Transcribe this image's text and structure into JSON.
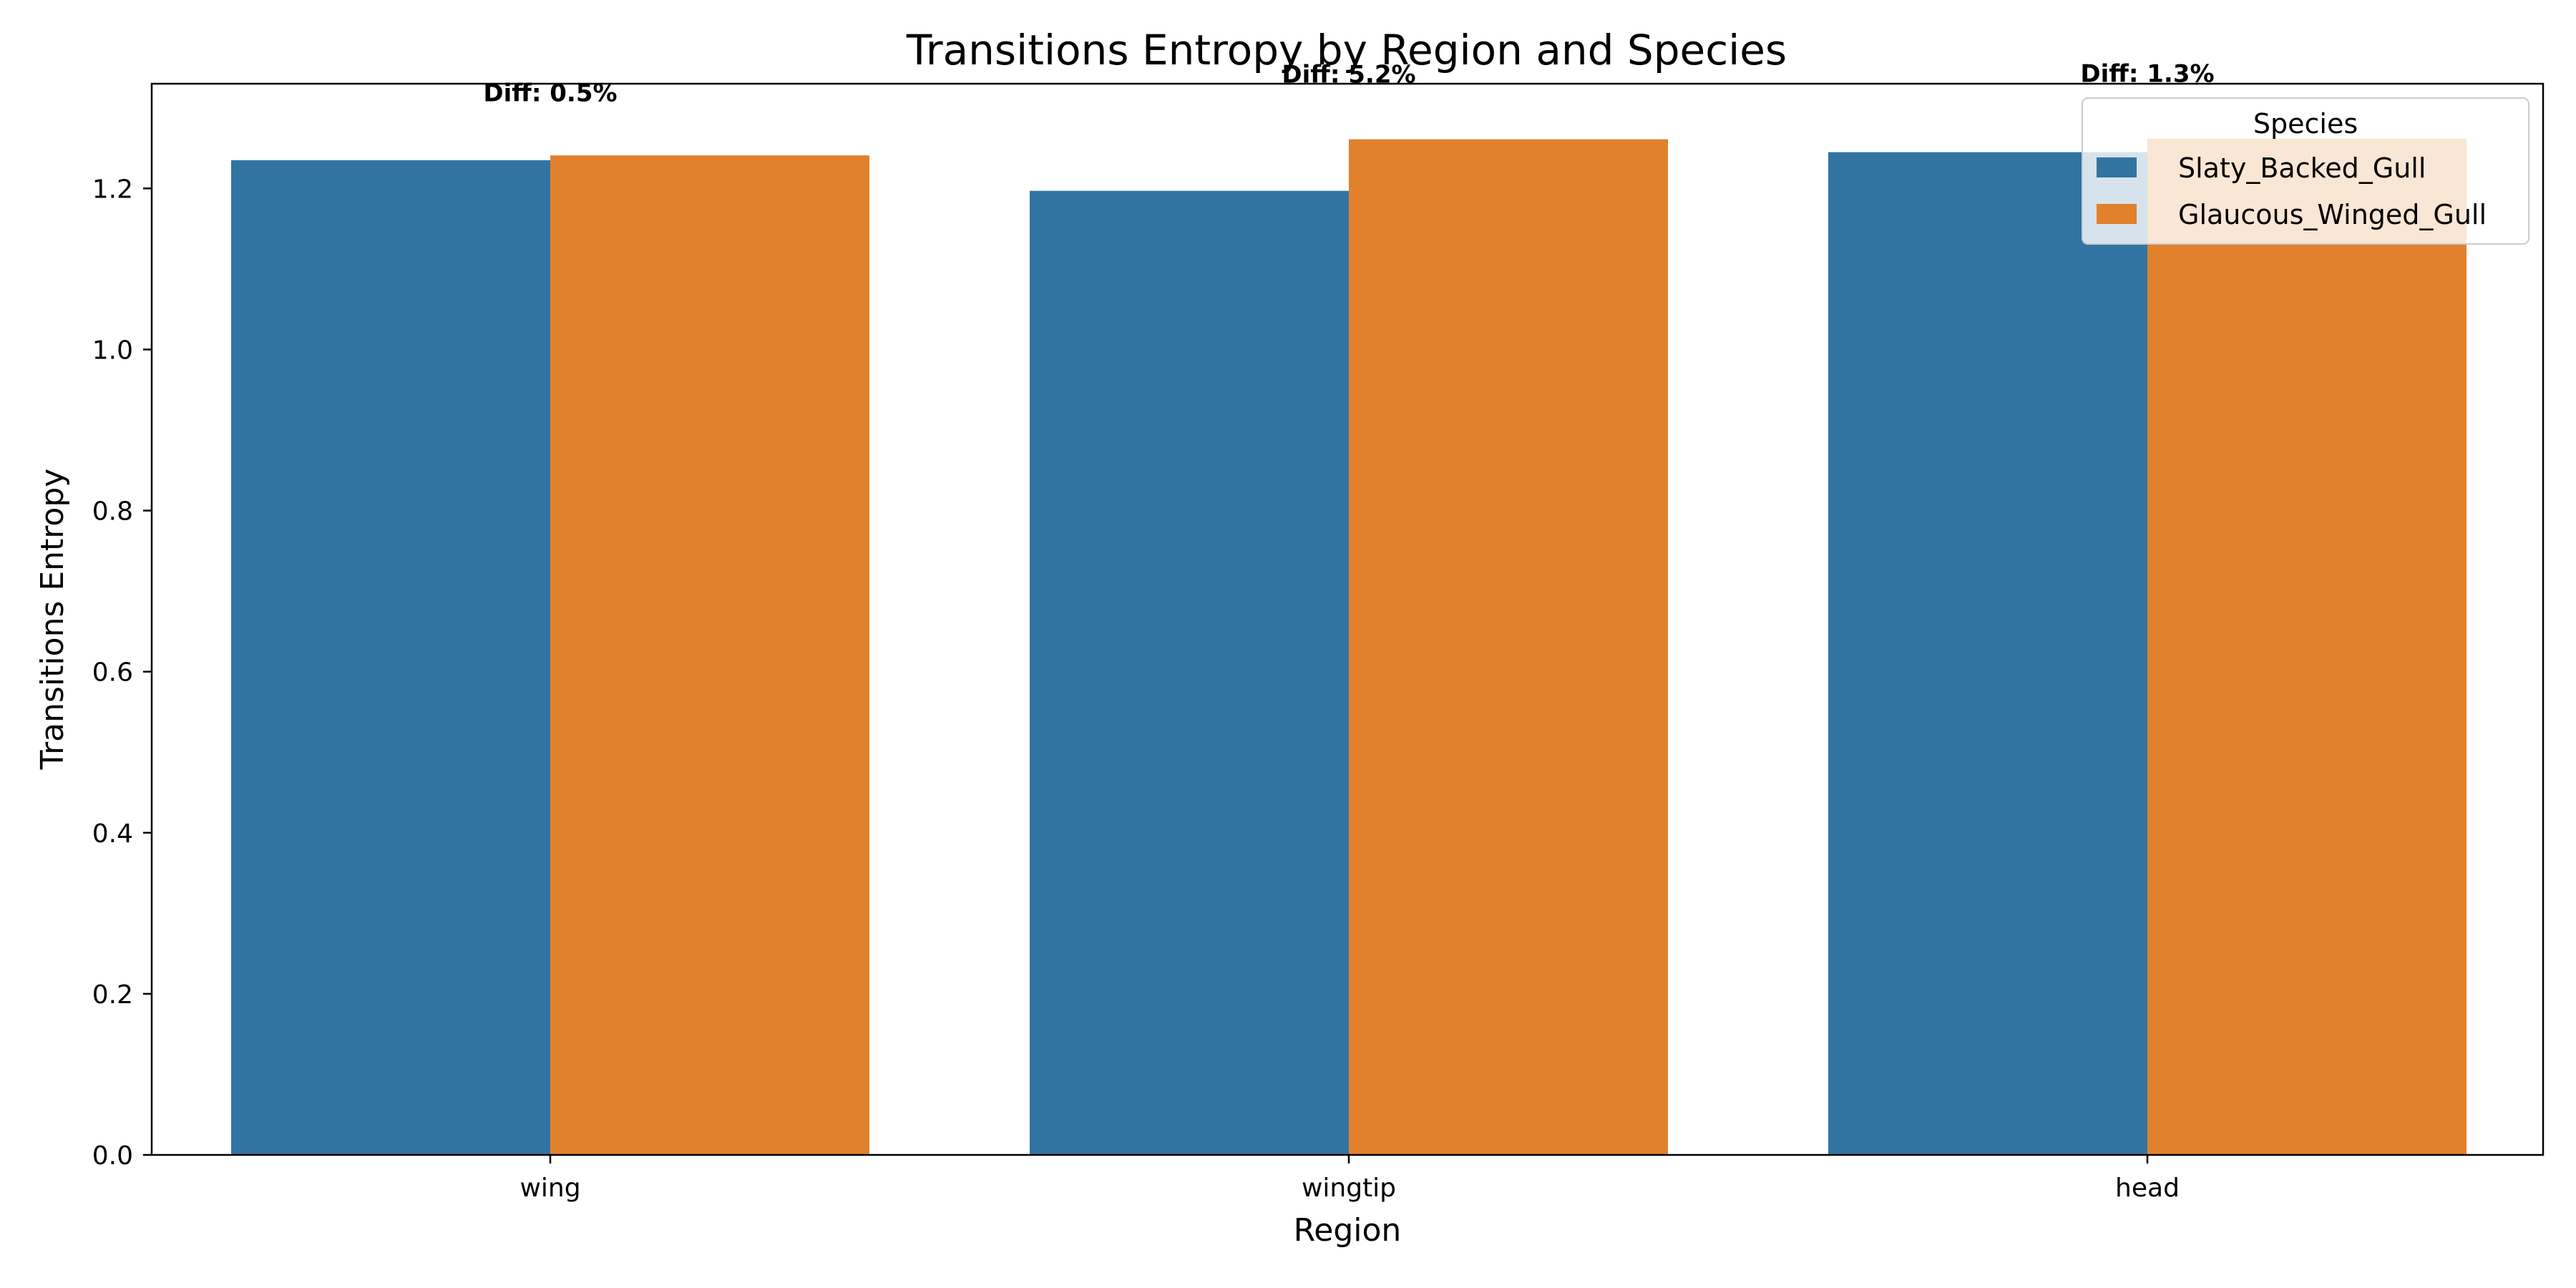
{
  "chart_data": {
    "type": "bar",
    "title": "Transitions Entropy by Region and Species",
    "xlabel": "Region",
    "ylabel": "Transitions Entropy",
    "categories": [
      "wing",
      "wingtip",
      "head"
    ],
    "series": [
      {
        "name": "Slaty_Backed_Gull",
        "color": "#3274a1",
        "values": [
          1.235,
          1.197,
          1.245
        ]
      },
      {
        "name": "Glaucous_Winged_Gull",
        "color": "#e1812c",
        "values": [
          1.241,
          1.261,
          1.262
        ]
      }
    ],
    "ylim": [
      0,
      1.33
    ],
    "yticks": [
      "0.0",
      "0.2",
      "0.4",
      "0.6",
      "0.8",
      "1.0",
      "1.2"
    ],
    "grid": false,
    "legend": {
      "title": "Species",
      "placement": "top-right"
    },
    "annotations": [
      {
        "category": "wing",
        "text": "Diff: 0.5%",
        "y": 1.319
      },
      {
        "category": "wingtip",
        "text": "Diff: 5.2%",
        "y": 1.342
      },
      {
        "category": "head",
        "text": "Diff: 1.3%",
        "y": 1.343
      }
    ]
  }
}
